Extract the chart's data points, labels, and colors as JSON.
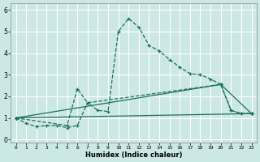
{
  "xlabel": "Humidex (Indice chaleur)",
  "background_color": "#cce8e4",
  "grid_color": "#ffffff",
  "line_color": "#1a6e62",
  "xlim": [
    -0.5,
    23.5
  ],
  "ylim": [
    -0.15,
    6.3
  ],
  "xticks": [
    0,
    1,
    2,
    3,
    4,
    5,
    6,
    7,
    8,
    9,
    10,
    11,
    12,
    13,
    14,
    15,
    16,
    17,
    18,
    19,
    20,
    21,
    22,
    23
  ],
  "yticks": [
    0,
    1,
    2,
    3,
    4,
    5,
    6
  ],
  "series1": [
    [
      0,
      1.0
    ],
    [
      1,
      0.75
    ],
    [
      2,
      0.6
    ],
    [
      3,
      0.65
    ],
    [
      4,
      0.65
    ],
    [
      5,
      0.55
    ],
    [
      6,
      0.65
    ],
    [
      7,
      1.7
    ],
    [
      8,
      1.35
    ],
    [
      9,
      1.3
    ],
    [
      10,
      5.0
    ],
    [
      11,
      5.6
    ],
    [
      12,
      5.2
    ],
    [
      13,
      4.35
    ],
    [
      14,
      4.1
    ],
    [
      15,
      3.7
    ],
    [
      16,
      3.35
    ],
    [
      17,
      3.05
    ],
    [
      18,
      3.0
    ],
    [
      19,
      2.8
    ],
    [
      20,
      2.55
    ],
    [
      21,
      1.35
    ],
    [
      22,
      1.2
    ],
    [
      23,
      1.2
    ]
  ],
  "series2": [
    [
      0,
      1.0
    ],
    [
      5,
      0.65
    ],
    [
      6,
      2.35
    ],
    [
      7,
      1.7
    ],
    [
      20,
      2.55
    ],
    [
      21,
      1.35
    ],
    [
      22,
      1.2
    ],
    [
      23,
      1.2
    ]
  ],
  "series3": [
    [
      0,
      1.0
    ],
    [
      20,
      2.55
    ],
    [
      23,
      1.2
    ]
  ],
  "series4": [
    [
      0,
      1.0
    ],
    [
      23,
      1.2
    ]
  ]
}
